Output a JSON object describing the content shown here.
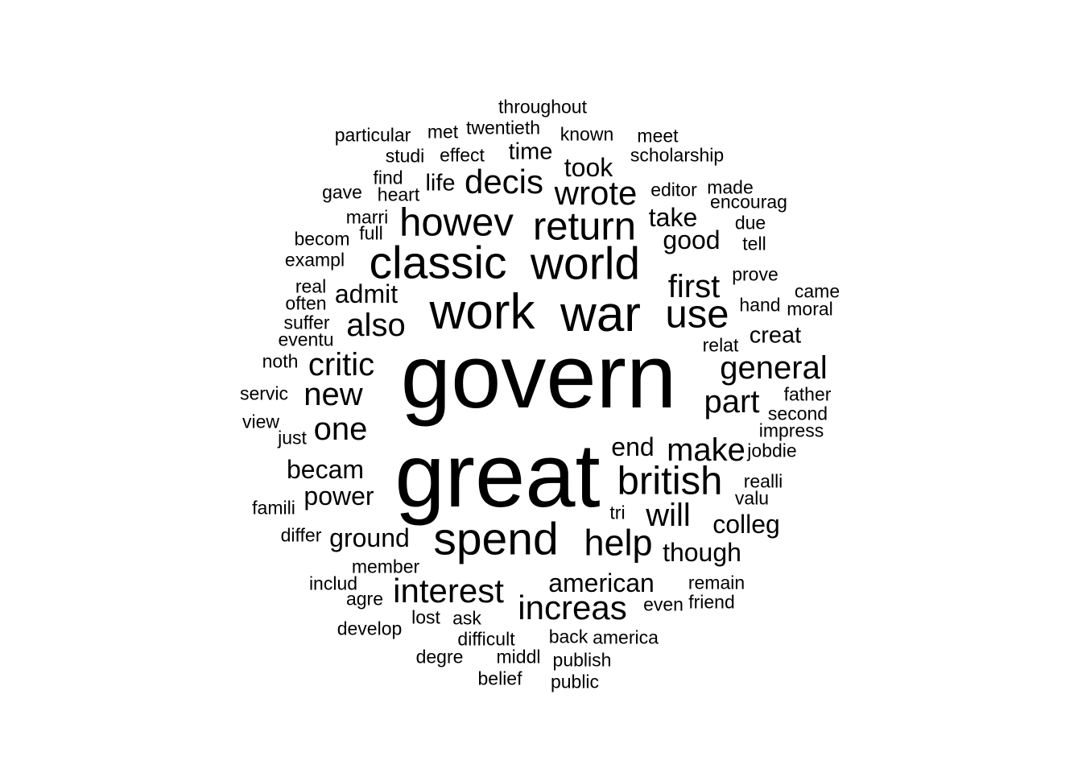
{
  "words": [
    {
      "text": "govern"
    },
    {
      "text": "great"
    },
    {
      "text": "work"
    },
    {
      "text": "war"
    },
    {
      "text": "classic"
    },
    {
      "text": "world"
    },
    {
      "text": "spend"
    },
    {
      "text": "howev"
    },
    {
      "text": "return"
    },
    {
      "text": "british"
    },
    {
      "text": "use"
    },
    {
      "text": "help"
    },
    {
      "text": "decis"
    },
    {
      "text": "wrote"
    },
    {
      "text": "increas"
    },
    {
      "text": "interest"
    },
    {
      "text": "first"
    },
    {
      "text": "make"
    },
    {
      "text": "part"
    },
    {
      "text": "general"
    },
    {
      "text": "critic"
    },
    {
      "text": "new"
    },
    {
      "text": "also"
    },
    {
      "text": "will"
    },
    {
      "text": "one"
    },
    {
      "text": "american"
    },
    {
      "text": "becam"
    },
    {
      "text": "admit"
    },
    {
      "text": "took"
    },
    {
      "text": "good"
    },
    {
      "text": "take"
    },
    {
      "text": "power"
    },
    {
      "text": "ground"
    },
    {
      "text": "though"
    },
    {
      "text": "colleg"
    },
    {
      "text": "end"
    },
    {
      "text": "creat"
    },
    {
      "text": "time"
    },
    {
      "text": "life"
    },
    {
      "text": "throughout"
    },
    {
      "text": "particular"
    },
    {
      "text": "met"
    },
    {
      "text": "twentieth"
    },
    {
      "text": "known"
    },
    {
      "text": "meet"
    },
    {
      "text": "studi"
    },
    {
      "text": "effect"
    },
    {
      "text": "scholarship"
    },
    {
      "text": "find"
    },
    {
      "text": "gave"
    },
    {
      "text": "heart"
    },
    {
      "text": "editor"
    },
    {
      "text": "made"
    },
    {
      "text": "encourag"
    },
    {
      "text": "marri"
    },
    {
      "text": "due"
    },
    {
      "text": "full"
    },
    {
      "text": "becom"
    },
    {
      "text": "tell"
    },
    {
      "text": "exampl"
    },
    {
      "text": "prove"
    },
    {
      "text": "real"
    },
    {
      "text": "came"
    },
    {
      "text": "often"
    },
    {
      "text": "hand"
    },
    {
      "text": "moral"
    },
    {
      "text": "suffer"
    },
    {
      "text": "eventu"
    },
    {
      "text": "relat"
    },
    {
      "text": "noth"
    },
    {
      "text": "servic"
    },
    {
      "text": "father"
    },
    {
      "text": "second"
    },
    {
      "text": "view"
    },
    {
      "text": "impress"
    },
    {
      "text": "just"
    },
    {
      "text": "jobdie"
    },
    {
      "text": "realli"
    },
    {
      "text": "valu"
    },
    {
      "text": "famili"
    },
    {
      "text": "tri"
    },
    {
      "text": "differ"
    },
    {
      "text": "member"
    },
    {
      "text": "includ"
    },
    {
      "text": "remain"
    },
    {
      "text": "agre"
    },
    {
      "text": "even"
    },
    {
      "text": "friend"
    },
    {
      "text": "lost"
    },
    {
      "text": "ask"
    },
    {
      "text": "develop"
    },
    {
      "text": "back"
    },
    {
      "text": "america"
    },
    {
      "text": "difficult"
    },
    {
      "text": "degre"
    },
    {
      "text": "middl"
    },
    {
      "text": "publish"
    },
    {
      "text": "belief"
    },
    {
      "text": "public"
    }
  ]
}
